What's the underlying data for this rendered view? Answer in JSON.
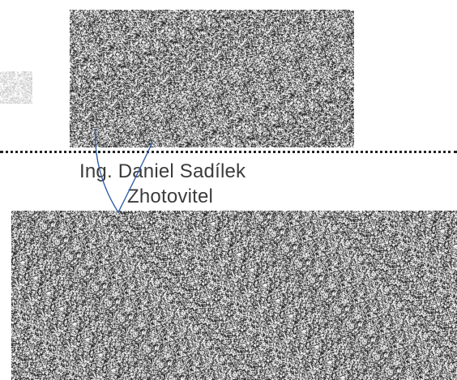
{
  "signature_block": {
    "name": "Ing. Daniel Sadílek",
    "role": "Zhotovitel"
  },
  "colors": {
    "text": "#3b3b3b",
    "signature_ink": "#2f5fa8",
    "dotted_line": "#222222",
    "noise_dark": "#111111",
    "noise_light": "#ffffff"
  }
}
